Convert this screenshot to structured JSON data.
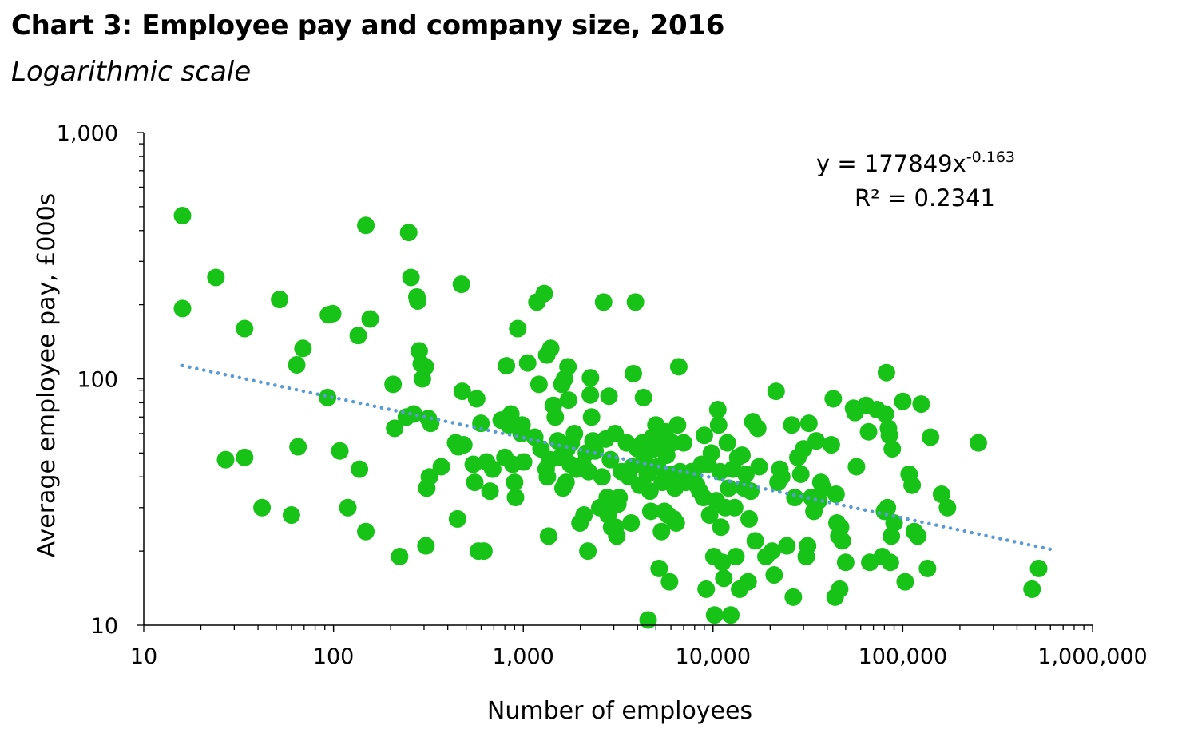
{
  "title": "Chart 3: Employee pay and company size, 2016",
  "subtitle": "Logarithmic scale",
  "colors": {
    "points": "#17c317",
    "trendline": "#5b9bd5",
    "axis": "#000000"
  },
  "chart_data": {
    "type": "scatter",
    "xscale": "log",
    "yscale": "log",
    "xlabel": "Number of employees",
    "ylabel": "Average employee pay,  £000s",
    "xlim": [
      10,
      1000000
    ],
    "ylim": [
      10,
      1000
    ],
    "x_tick_labels": [
      "10",
      "100",
      "1,000",
      "10,000",
      "100,000",
      "1,000,000"
    ],
    "y_tick_labels": [
      "10",
      "100",
      "1,000"
    ],
    "grid": false,
    "legend": "none",
    "trendline": {
      "type": "power",
      "coefficient": 177849,
      "exponent": -0.163,
      "x_range": [
        16,
        600000
      ],
      "equation_base": "y = 177849x",
      "equation_exponent": "-0.163",
      "r_squared_label": "R² = 0.2341"
    },
    "points": [
      [
        16,
        460
      ],
      [
        16,
        193
      ],
      [
        24,
        258
      ],
      [
        27,
        47
      ],
      [
        34,
        160
      ],
      [
        34,
        48
      ],
      [
        42,
        30
      ],
      [
        52,
        210
      ],
      [
        60,
        28
      ],
      [
        64,
        114
      ],
      [
        65,
        53
      ],
      [
        69,
        133
      ],
      [
        93,
        84
      ],
      [
        94,
        182
      ],
      [
        99,
        184
      ],
      [
        108,
        51
      ],
      [
        119,
        30
      ],
      [
        135,
        150
      ],
      [
        137,
        43
      ],
      [
        148,
        24
      ],
      [
        148,
        420
      ],
      [
        156,
        175
      ],
      [
        206,
        95
      ],
      [
        210,
        63
      ],
      [
        223,
        19
      ],
      [
        242,
        70
      ],
      [
        249,
        393
      ],
      [
        256,
        258
      ],
      [
        265,
        72
      ],
      [
        275,
        215
      ],
      [
        278,
        207
      ],
      [
        283,
        130
      ],
      [
        290,
        115
      ],
      [
        294,
        100
      ],
      [
        305,
        112
      ],
      [
        307,
        21
      ],
      [
        310,
        36
      ],
      [
        316,
        69
      ],
      [
        320,
        40
      ],
      [
        325,
        66
      ],
      [
        370,
        44
      ],
      [
        440,
        55
      ],
      [
        450,
        27
      ],
      [
        455,
        53
      ],
      [
        472,
        242
      ],
      [
        477,
        89
      ],
      [
        486,
        54
      ],
      [
        545,
        45
      ],
      [
        555,
        38
      ],
      [
        568,
        83
      ],
      [
        580,
        20
      ],
      [
        598,
        66
      ],
      [
        620,
        20
      ],
      [
        640,
        46
      ],
      [
        668,
        35
      ],
      [
        690,
        43
      ],
      [
        765,
        68
      ],
      [
        800,
        48
      ],
      [
        815,
        113
      ],
      [
        840,
        65
      ],
      [
        860,
        72
      ],
      [
        880,
        45
      ],
      [
        900,
        38
      ],
      [
        910,
        33
      ],
      [
        935,
        160
      ],
      [
        975,
        60
      ],
      [
        985,
        65
      ],
      [
        1004,
        46
      ],
      [
        1055,
        116
      ],
      [
        1150,
        58
      ],
      [
        1180,
        205
      ],
      [
        1210,
        95
      ],
      [
        1240,
        52
      ],
      [
        1290,
        222
      ],
      [
        1320,
        43
      ],
      [
        1330,
        125
      ],
      [
        1340,
        40
      ],
      [
        1360,
        23
      ],
      [
        1385,
        47
      ],
      [
        1395,
        133
      ],
      [
        1440,
        78
      ],
      [
        1475,
        70
      ],
      [
        1520,
        56
      ],
      [
        1570,
        48
      ],
      [
        1600,
        95
      ],
      [
        1620,
        36
      ],
      [
        1650,
        100
      ],
      [
        1680,
        38
      ],
      [
        1700,
        52
      ],
      [
        1720,
        112
      ],
      [
        1730,
        82
      ],
      [
        1770,
        45
      ],
      [
        1790,
        55
      ],
      [
        1860,
        60
      ],
      [
        1910,
        43
      ],
      [
        1990,
        26
      ],
      [
        2060,
        45
      ],
      [
        2090,
        28
      ],
      [
        2150,
        50
      ],
      [
        2190,
        20
      ],
      [
        2210,
        42
      ],
      [
        2255,
        86
      ],
      [
        2260,
        101
      ],
      [
        2290,
        70
      ],
      [
        2330,
        56
      ],
      [
        2390,
        51
      ],
      [
        2530,
        30
      ],
      [
        2600,
        40
      ],
      [
        2650,
        205
      ],
      [
        2720,
        57
      ],
      [
        2770,
        33
      ],
      [
        2800,
        28
      ],
      [
        2830,
        85
      ],
      [
        2880,
        47
      ],
      [
        2920,
        25
      ],
      [
        3050,
        60
      ],
      [
        3060,
        25
      ],
      [
        3110,
        23
      ],
      [
        3150,
        31
      ],
      [
        3200,
        33
      ],
      [
        3290,
        42
      ],
      [
        3500,
        55
      ],
      [
        3600,
        40
      ],
      [
        3700,
        26
      ],
      [
        3750,
        44
      ],
      [
        3800,
        105
      ],
      [
        3900,
        205
      ],
      [
        4000,
        52
      ],
      [
        4100,
        37
      ],
      [
        4250,
        55
      ],
      [
        4300,
        84
      ],
      [
        4350,
        47
      ],
      [
        4500,
        41
      ],
      [
        4550,
        10.5
      ],
      [
        4650,
        35
      ],
      [
        4700,
        29
      ],
      [
        4800,
        58
      ],
      [
        4900,
        52
      ],
      [
        5000,
        65
      ],
      [
        5100,
        44
      ],
      [
        5200,
        17
      ],
      [
        5300,
        55
      ],
      [
        5350,
        24
      ],
      [
        5400,
        38
      ],
      [
        5550,
        29
      ],
      [
        5600,
        61
      ],
      [
        5700,
        49
      ],
      [
        5800,
        28
      ],
      [
        5900,
        15
      ],
      [
        6000,
        41
      ],
      [
        6100,
        55
      ],
      [
        6200,
        27
      ],
      [
        6300,
        36
      ],
      [
        6400,
        26
      ],
      [
        6500,
        65
      ],
      [
        6600,
        112
      ],
      [
        6700,
        42
      ],
      [
        7000,
        55
      ],
      [
        7200,
        38
      ],
      [
        7700,
        42
      ],
      [
        7900,
        40
      ],
      [
        8200,
        37
      ],
      [
        8500,
        35
      ],
      [
        8700,
        45
      ],
      [
        8900,
        33
      ],
      [
        9000,
        59
      ],
      [
        9200,
        14
      ],
      [
        9400,
        45
      ],
      [
        9600,
        28
      ],
      [
        9800,
        50
      ],
      [
        10100,
        19
      ],
      [
        10200,
        11
      ],
      [
        10400,
        32
      ],
      [
        10600,
        75
      ],
      [
        10700,
        65
      ],
      [
        10900,
        42
      ],
      [
        11000,
        25
      ],
      [
        11200,
        18
      ],
      [
        11400,
        15.5
      ],
      [
        11600,
        30
      ],
      [
        11900,
        55
      ],
      [
        12100,
        36
      ],
      [
        12400,
        11
      ],
      [
        12700,
        43
      ],
      [
        13000,
        30
      ],
      [
        13200,
        19
      ],
      [
        13500,
        48
      ],
      [
        13800,
        14
      ],
      [
        14200,
        49
      ],
      [
        14600,
        36
      ],
      [
        14900,
        41
      ],
      [
        15300,
        15
      ],
      [
        15500,
        27
      ],
      [
        15800,
        35
      ],
      [
        16200,
        67
      ],
      [
        16700,
        22
      ],
      [
        17200,
        63
      ],
      [
        17500,
        44
      ],
      [
        19000,
        19
      ],
      [
        20500,
        20
      ],
      [
        21000,
        16
      ],
      [
        21500,
        89
      ],
      [
        22000,
        38
      ],
      [
        22500,
        43
      ],
      [
        23000,
        40
      ],
      [
        24500,
        21
      ],
      [
        26000,
        65
      ],
      [
        26500,
        13
      ],
      [
        27000,
        33
      ],
      [
        28000,
        48
      ],
      [
        29000,
        41
      ],
      [
        30000,
        52
      ],
      [
        31000,
        19
      ],
      [
        31500,
        21
      ],
      [
        32000,
        66
      ],
      [
        33000,
        33
      ],
      [
        34000,
        29
      ],
      [
        35000,
        56
      ],
      [
        36000,
        32
      ],
      [
        37000,
        38
      ],
      [
        38000,
        36
      ],
      [
        42000,
        54
      ],
      [
        43000,
        83
      ],
      [
        44000,
        13
      ],
      [
        44500,
        34
      ],
      [
        45000,
        26
      ],
      [
        46000,
        23
      ],
      [
        46500,
        14
      ],
      [
        47000,
        25
      ],
      [
        48000,
        22
      ],
      [
        50000,
        18
      ],
      [
        55000,
        76
      ],
      [
        56000,
        73
      ],
      [
        57000,
        44
      ],
      [
        64000,
        78
      ],
      [
        66000,
        61
      ],
      [
        67000,
        18
      ],
      [
        73000,
        75
      ],
      [
        78000,
        19
      ],
      [
        80000,
        29
      ],
      [
        81000,
        72
      ],
      [
        82000,
        106
      ],
      [
        83000,
        30
      ],
      [
        84000,
        63
      ],
      [
        85000,
        59
      ],
      [
        86000,
        18
      ],
      [
        87000,
        23
      ],
      [
        88000,
        52
      ],
      [
        90000,
        26
      ],
      [
        100000,
        81
      ],
      [
        103000,
        15
      ],
      [
        108000,
        41
      ],
      [
        112000,
        37
      ],
      [
        115000,
        24
      ],
      [
        120000,
        23
      ],
      [
        125000,
        79
      ],
      [
        135000,
        17
      ],
      [
        140000,
        58
      ],
      [
        160000,
        34
      ],
      [
        172000,
        30
      ],
      [
        250000,
        55
      ],
      [
        480000,
        14
      ],
      [
        520000,
        17
      ]
    ]
  }
}
